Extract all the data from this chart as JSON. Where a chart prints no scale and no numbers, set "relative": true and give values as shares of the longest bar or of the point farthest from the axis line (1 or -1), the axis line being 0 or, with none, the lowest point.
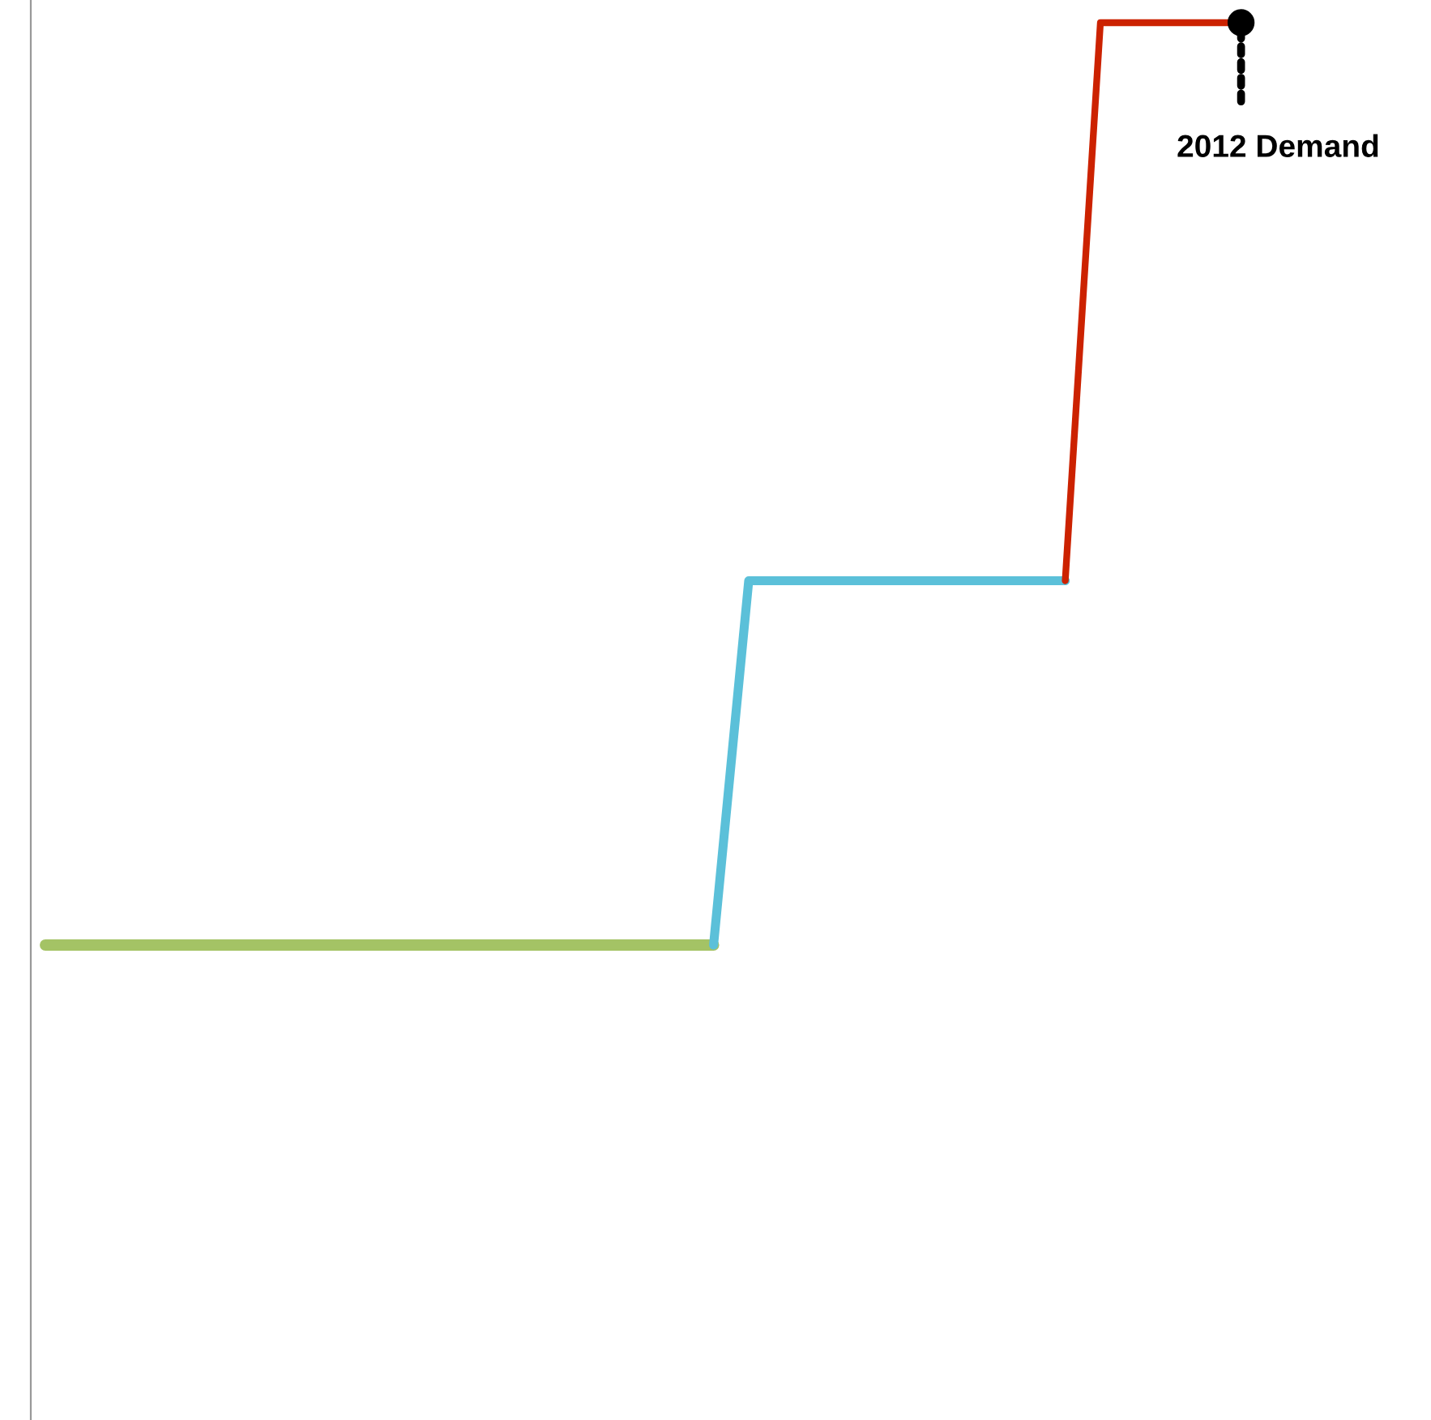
{
  "chart_data": {
    "type": "line",
    "relative": true,
    "categories": [
      null,
      null,
      null,
      null,
      null,
      null,
      null,
      null,
      null,
      null,
      null,
      null,
      null,
      null,
      null,
      null,
      null,
      null,
      null,
      null,
      null,
      null,
      null,
      null,
      null,
      null,
      null,
      null,
      null,
      null,
      null,
      null,
      null,
      null,
      null
    ],
    "series": [
      {
        "color": "#a4c365",
        "values": [
          0,
          0,
          0,
          0,
          0,
          0,
          0,
          0,
          0,
          0,
          0,
          0,
          0,
          0,
          0,
          0,
          0,
          0,
          0,
          0,
          null,
          null,
          null,
          null,
          null,
          null,
          null,
          null,
          null,
          null,
          null,
          null,
          null,
          null,
          null
        ]
      },
      {
        "color": "#5bc0d9",
        "values": [
          null,
          null,
          null,
          null,
          null,
          null,
          null,
          null,
          null,
          null,
          null,
          null,
          null,
          null,
          null,
          null,
          null,
          null,
          null,
          0,
          0.395,
          0.395,
          0.395,
          0.395,
          0.395,
          0.395,
          0.395,
          0.395,
          0.395,
          0.395,
          null,
          null,
          null,
          null,
          null
        ]
      },
      {
        "color": "#cc2200",
        "values": [
          null,
          null,
          null,
          null,
          null,
          null,
          null,
          null,
          null,
          null,
          null,
          null,
          null,
          null,
          null,
          null,
          null,
          null,
          null,
          null,
          null,
          null,
          null,
          null,
          null,
          null,
          null,
          null,
          null,
          0.395,
          1,
          1,
          1,
          1,
          1
        ]
      }
    ],
    "annotations": [
      "2012 Demand"
    ],
    "legend": false,
    "marker": "none",
    "line_style": "solid"
  }
}
